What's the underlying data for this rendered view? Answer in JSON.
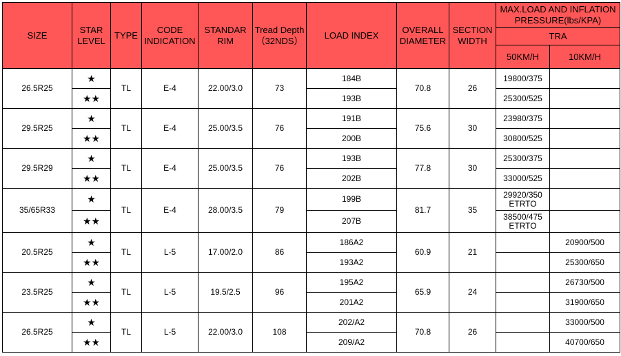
{
  "table": {
    "headers": {
      "size": "SIZE",
      "star_level": "STAR LEVEL",
      "type": "TYPE",
      "code_indication": "CODE INDICATION",
      "standard_rim": "STANDAR RIM",
      "tread_depth": "Tread Depth（32NDS）",
      "load_index": "LOAD INDEX",
      "overall_diameter": "OVERALL DIAMETER",
      "section_width": "SECTION WIDTH",
      "max_load": "MAX.LOAD AND INFLATION PRESSURE(lbs/KPA)",
      "tra": "TRA",
      "speed_50": "50KM/H",
      "speed_10": "10KM/H"
    },
    "colors": {
      "header_bg": "#ff5757",
      "border": "#000000"
    },
    "rows": [
      {
        "size": "26.5R25",
        "type": "TL",
        "code": "E-4",
        "rim": "22.00/3.0",
        "tread": "73",
        "diameter": "70.8",
        "width": "26",
        "levels": [
          {
            "star": "★",
            "load_index": "184B",
            "load_50": "19800/375",
            "load_10": ""
          },
          {
            "star": "★★",
            "load_index": "193B",
            "load_50": "25300/525",
            "load_10": ""
          }
        ]
      },
      {
        "size": "29.5R25",
        "type": "TL",
        "code": "E-4",
        "rim": "25.00/3.5",
        "tread": "76",
        "diameter": "75.6",
        "width": "30",
        "levels": [
          {
            "star": "★",
            "load_index": "191B",
            "load_50": "23980/375",
            "load_10": ""
          },
          {
            "star": "★★",
            "load_index": "200B",
            "load_50": "30800/525",
            "load_10": ""
          }
        ]
      },
      {
        "size": "29.5R29",
        "type": "TL",
        "code": "E-4",
        "rim": "25.00/3.5",
        "tread": "76",
        "diameter": "77.8",
        "width": "30",
        "levels": [
          {
            "star": "★",
            "load_index": "193B",
            "load_50": "25300/375",
            "load_10": ""
          },
          {
            "star": "★★",
            "load_index": "202B",
            "load_50": "33000/525",
            "load_10": ""
          }
        ]
      },
      {
        "size": "35/65R33",
        "type": "TL",
        "code": "E-4",
        "rim": "28.00/3.5",
        "tread": "79",
        "diameter": "81.7",
        "width": "35",
        "levels": [
          {
            "star": "★",
            "load_index": "199B",
            "load_50_line1": "29920/350",
            "load_50_line2": "ETRTO",
            "load_10": ""
          },
          {
            "star": "★★",
            "load_index": "207B",
            "load_50_line1": "38500/475",
            "load_50_line2": "ETRTO",
            "load_10": ""
          }
        ]
      },
      {
        "size": "20.5R25",
        "type": "TL",
        "code": "L-5",
        "rim": "17.00/2.0",
        "tread": "86",
        "diameter": "60.9",
        "width": "21",
        "levels": [
          {
            "star": "★",
            "load_index": "186A2",
            "load_50": "",
            "load_10": "20900/500"
          },
          {
            "star": "★★",
            "load_index": "193A2",
            "load_50": "",
            "load_10": "25300/650"
          }
        ]
      },
      {
        "size": "23.5R25",
        "type": "TL",
        "code": "L-5",
        "rim": "19.5/2.5",
        "tread": "96",
        "diameter": "65.9",
        "width": "24",
        "levels": [
          {
            "star": "★",
            "load_index": "195A2",
            "load_50": "",
            "load_10": "26730/500"
          },
          {
            "star": "★★",
            "load_index": "201A2",
            "load_50": "",
            "load_10": "31900/650"
          }
        ]
      },
      {
        "size": "26.5R25",
        "type": "TL",
        "code": "L-5",
        "rim": "22.00/3.0",
        "tread": "108",
        "diameter": "70.8",
        "width": "26",
        "levels": [
          {
            "star": "★",
            "load_index": "202/A2",
            "load_50": "",
            "load_10": "33000/500"
          },
          {
            "star": "★★",
            "load_index": "209/A2",
            "load_50": "",
            "load_10": "40700/650"
          }
        ]
      }
    ]
  }
}
